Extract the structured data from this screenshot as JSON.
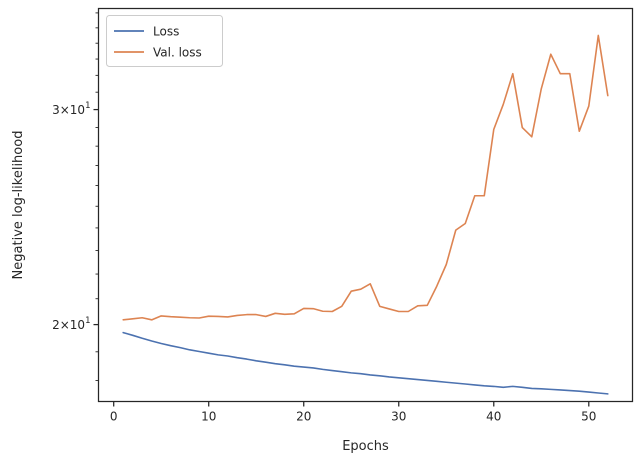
{
  "chart_data": {
    "type": "line",
    "title": "",
    "xlabel": "Epochs",
    "ylabel": "Negative log-likelihood",
    "yscale": "log",
    "xlim": [
      -1.6,
      54.6
    ],
    "ylim": [
      17.3,
      36.3
    ],
    "grid": false,
    "legend_position": "top-left",
    "x_ticks": [
      0,
      10,
      20,
      30,
      40,
      50
    ],
    "x_tick_labels": [
      "0",
      "10",
      "20",
      "30",
      "40",
      "50"
    ],
    "y_ticks": [
      20,
      30
    ],
    "y_tick_labels": [
      {
        "base": "2",
        "exponent": "1",
        "mult": "×10"
      },
      {
        "base": "3",
        "exponent": "1",
        "mult": "×10"
      }
    ],
    "x": [
      1,
      2,
      3,
      4,
      5,
      6,
      7,
      8,
      9,
      10,
      11,
      12,
      13,
      14,
      15,
      16,
      17,
      18,
      19,
      20,
      21,
      22,
      23,
      24,
      25,
      26,
      27,
      28,
      29,
      30,
      31,
      32,
      33,
      34,
      35,
      36,
      37,
      38,
      39,
      40,
      41,
      42,
      43,
      44,
      45,
      46,
      47,
      48,
      49,
      50,
      51,
      52
    ],
    "series": [
      {
        "name": "Loss",
        "color": "#4c72b0",
        "values": [
          19.7,
          19.6,
          19.49,
          19.39,
          19.3,
          19.22,
          19.15,
          19.07,
          19.01,
          18.95,
          18.89,
          18.85,
          18.79,
          18.74,
          18.68,
          18.63,
          18.58,
          18.54,
          18.49,
          18.46,
          18.43,
          18.38,
          18.34,
          18.3,
          18.26,
          18.23,
          18.19,
          18.16,
          18.12,
          18.09,
          18.06,
          18.03,
          18.0,
          17.97,
          17.94,
          17.91,
          17.88,
          17.85,
          17.82,
          17.8,
          17.77,
          17.8,
          17.77,
          17.73,
          17.72,
          17.7,
          17.68,
          17.66,
          17.64,
          17.61,
          17.58,
          17.55
        ]
      },
      {
        "name": "Val. loss",
        "color": "#dd8452",
        "values": [
          20.18,
          20.22,
          20.26,
          20.18,
          20.33,
          20.3,
          20.28,
          20.26,
          20.25,
          20.32,
          20.31,
          20.29,
          20.35,
          20.38,
          20.38,
          20.31,
          20.43,
          20.39,
          20.41,
          20.62,
          20.61,
          20.51,
          20.5,
          20.7,
          21.3,
          21.38,
          21.6,
          20.7,
          20.6,
          20.5,
          20.5,
          20.72,
          20.74,
          21.5,
          22.4,
          23.9,
          24.2,
          25.5,
          25.5,
          28.9,
          30.3,
          32.1,
          29.0,
          28.5,
          31.2,
          33.3,
          32.1,
          32.1,
          28.8,
          30.2,
          34.5,
          30.8
        ]
      }
    ]
  }
}
